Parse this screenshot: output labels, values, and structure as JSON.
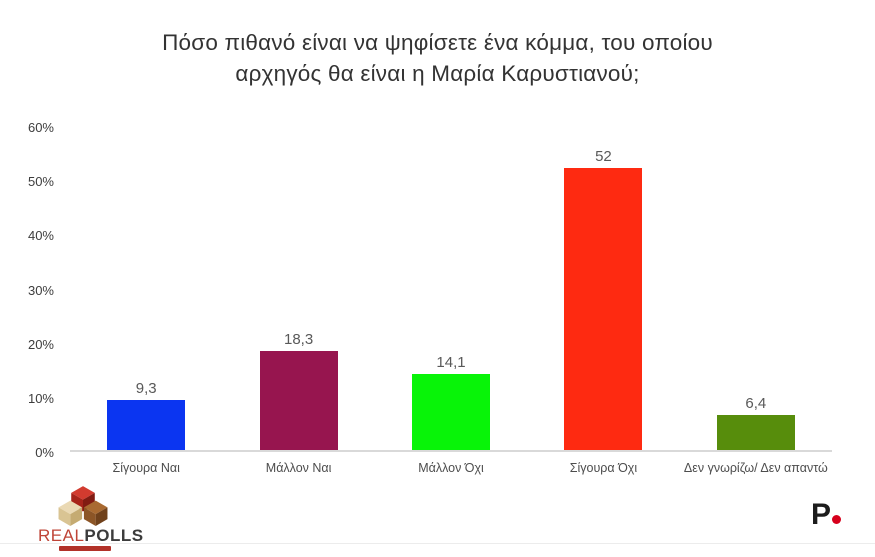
{
  "title": {
    "line1": "Πόσο πιθανό είναι να ψηφίσετε ένα κόμμα, του οποίου",
    "line2": "αρχηγός θα είναι η Μαρία Καρυστιανού;"
  },
  "chart_data": {
    "type": "bar",
    "title": "Πόσο πιθανό είναι να ψηφίσετε ένα κόμμα, του οποίου αρχηγός θα είναι η Μαρία Καρυστιανού;",
    "categories": [
      "Σίγουρα Ναι",
      "Μάλλον Ναι",
      "Μάλλον Όχι",
      "Σίγουρα Όχι",
      "Δεν γνωρίζω/ Δεν απαντώ"
    ],
    "values": [
      9.3,
      18.3,
      14.1,
      52,
      6.4
    ],
    "value_labels": [
      "9,3",
      "18,3",
      "14,1",
      "52",
      "6,4"
    ],
    "bar_colors": [
      "#0b35f1",
      "#97154f",
      "#08f408",
      "#fe2a11",
      "#578d0c"
    ],
    "xlabel": "",
    "ylabel": "",
    "ylim": [
      0,
      60
    ],
    "yticks": [
      "0%",
      "10%",
      "20%",
      "30%",
      "40%",
      "50%",
      "60%"
    ],
    "grid": false,
    "legend": null
  },
  "footer": {
    "realpolls": {
      "brand_real": "REAL",
      "brand_polls": "POLLS"
    },
    "publisher_logo": {
      "letter": "P"
    }
  }
}
